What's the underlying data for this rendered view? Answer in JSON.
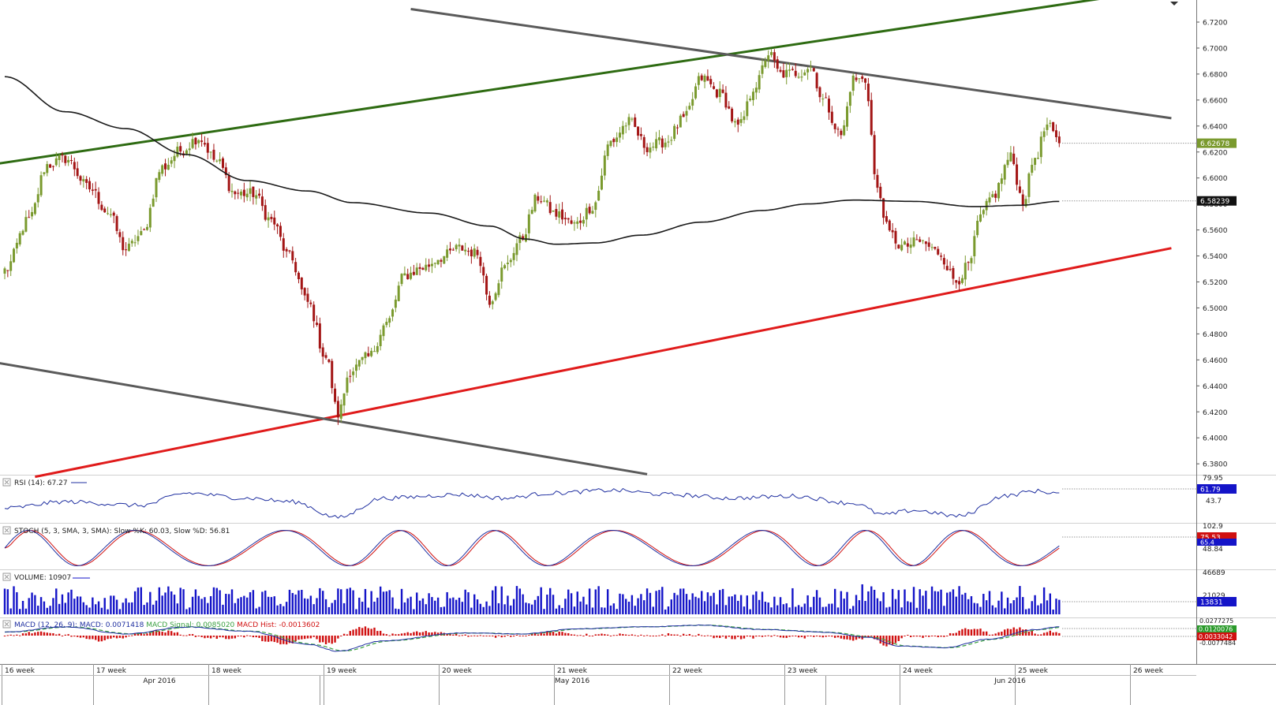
{
  "colors": {
    "bull": "#7a9a2e",
    "bear": "#a31515",
    "ma": "#1a1a1a",
    "channel_upper": "#2e6b12",
    "support": "#e01b1b",
    "channel_grey": "#5a5a5a",
    "rsi": "#1f2fa0",
    "stoch_k": "#1f2fa0",
    "stoch_d": "#d01010",
    "volume": "#1414c8",
    "macd": "#1f2fa0",
    "macd_signal": "#3aa040",
    "macd_hist": "#d01010",
    "grid": "#c8c8c8",
    "price_tag": "#7a9a2e",
    "ma_tag": "#111111",
    "rsi_tag": "#1414c8",
    "stoch_tag": "#d01010",
    "volume_tag": "#1414c8"
  },
  "chart_data": {
    "type": "candlestick",
    "instrument_style": "OHLC candles with indicators",
    "price_axis": {
      "ylim": [
        6.37,
        6.73
      ],
      "ticks": [
        "6.7200",
        "6.7000",
        "6.6800",
        "6.6600",
        "6.6400",
        "6.6200",
        "6.6000",
        "6.5800",
        "6.5600",
        "6.5400",
        "6.5200",
        "6.5000",
        "6.4800",
        "6.4600",
        "6.4400",
        "6.4200",
        "6.4000",
        "6.3800"
      ],
      "last_price": 6.62678,
      "last_price_label": "6.62678",
      "ma_value": 6.58239,
      "ma_value_label": "6.58239"
    },
    "x_axis": {
      "week_labels": [
        "16 week",
        "17 week",
        "18 week",
        "19 week",
        "20 week",
        "21 week",
        "22 week",
        "23 week",
        "24 week",
        "25 week",
        "26 week"
      ],
      "month_labels": [
        "Apr 2016",
        "May 2016",
        "Jun 2016"
      ]
    },
    "price_keypoints": [
      [
        0,
        6.529
      ],
      [
        8,
        6.568
      ],
      [
        14,
        6.61
      ],
      [
        20,
        6.615
      ],
      [
        28,
        6.592
      ],
      [
        34,
        6.574
      ],
      [
        40,
        6.545
      ],
      [
        45,
        6.556
      ],
      [
        52,
        6.608
      ],
      [
        58,
        6.621
      ],
      [
        64,
        6.631
      ],
      [
        70,
        6.613
      ],
      [
        76,
        6.588
      ],
      [
        82,
        6.588
      ],
      [
        88,
        6.567
      ],
      [
        94,
        6.539
      ],
      [
        100,
        6.504
      ],
      [
        106,
        6.462
      ],
      [
        110,
        6.418
      ],
      [
        114,
        6.452
      ],
      [
        120,
        6.462
      ],
      [
        126,
        6.488
      ],
      [
        132,
        6.525
      ],
      [
        138,
        6.531
      ],
      [
        144,
        6.539
      ],
      [
        150,
        6.546
      ],
      [
        156,
        6.542
      ],
      [
        160,
        6.506
      ],
      [
        165,
        6.531
      ],
      [
        170,
        6.552
      ],
      [
        176,
        6.585
      ],
      [
        182,
        6.572
      ],
      [
        188,
        6.564
      ],
      [
        194,
        6.578
      ],
      [
        200,
        6.628
      ],
      [
        206,
        6.643
      ],
      [
        212,
        6.624
      ],
      [
        218,
        6.628
      ],
      [
        224,
        6.645
      ],
      [
        230,
        6.677
      ],
      [
        236,
        6.665
      ],
      [
        242,
        6.639
      ],
      [
        248,
        6.672
      ],
      [
        252,
        6.696
      ],
      [
        256,
        6.68
      ],
      [
        262,
        6.681
      ],
      [
        266,
        6.686
      ],
      [
        270,
        6.66
      ],
      [
        276,
        6.633
      ],
      [
        280,
        6.676
      ],
      [
        284,
        6.675
      ],
      [
        288,
        6.59
      ],
      [
        292,
        6.557
      ],
      [
        296,
        6.547
      ],
      [
        302,
        6.551
      ],
      [
        308,
        6.543
      ],
      [
        314,
        6.521
      ],
      [
        318,
        6.532
      ],
      [
        322,
        6.57
      ],
      [
        326,
        6.586
      ],
      [
        332,
        6.616
      ],
      [
        336,
        6.582
      ],
      [
        340,
        6.616
      ],
      [
        344,
        6.64
      ],
      [
        348,
        6.627
      ]
    ],
    "ma_keypoints": [
      [
        0,
        6.678
      ],
      [
        20,
        6.651
      ],
      [
        40,
        6.638
      ],
      [
        60,
        6.618
      ],
      [
        80,
        6.598
      ],
      [
        100,
        6.59
      ],
      [
        115,
        6.581
      ],
      [
        140,
        6.573
      ],
      [
        160,
        6.563
      ],
      [
        172,
        6.553
      ],
      [
        182,
        6.549
      ],
      [
        195,
        6.55
      ],
      [
        210,
        6.556
      ],
      [
        230,
        6.566
      ],
      [
        250,
        6.575
      ],
      [
        265,
        6.58
      ],
      [
        280,
        6.583
      ],
      [
        300,
        6.582
      ],
      [
        320,
        6.578
      ],
      [
        335,
        6.579
      ],
      [
        348,
        6.582
      ]
    ],
    "volume_axis": {
      "ticks": [
        "46689",
        "21029"
      ],
      "last_label": "13831"
    },
    "rsi": {
      "label": "RSI (14): 67.27",
      "ticks": [
        "79.95",
        "43.7"
      ],
      "last_label": "61.79",
      "keypoints": [
        [
          0,
          41
        ],
        [
          20,
          50
        ],
        [
          45,
          45
        ],
        [
          60,
          62
        ],
        [
          80,
          55
        ],
        [
          95,
          50
        ],
        [
          110,
          28
        ],
        [
          125,
          55
        ],
        [
          150,
          60
        ],
        [
          165,
          55
        ],
        [
          180,
          62
        ],
        [
          200,
          66
        ],
        [
          220,
          60
        ],
        [
          240,
          55
        ],
        [
          260,
          58
        ],
        [
          280,
          48
        ],
        [
          290,
          32
        ],
        [
          300,
          38
        ],
        [
          315,
          30
        ],
        [
          330,
          58
        ],
        [
          340,
          65
        ],
        [
          348,
          62
        ]
      ]
    },
    "stoch": {
      "label": "STOCH (5, 3, SMA, 3, SMA): Slow %K: 60.03, Slow %D: 56.81",
      "ticks": [
        "102.9",
        "48.84"
      ],
      "last_k_label": "75.53",
      "last_d_label": "65.4"
    },
    "volume": {
      "label": "VOLUME: 10907"
    },
    "macd": {
      "label_main": "MACD (12, 26, 9): MACD: 0.0071418",
      "label_signal": "MACD Signal: 0.0085020",
      "label_hist": "MACD Hist: -0.0013602",
      "ticks": [
        "0.0277275",
        "-0.0077484"
      ],
      "last_macd_label": "0.0120076",
      "last_signal_label": "0.0033042",
      "keypoints": [
        [
          0,
          0.004
        ],
        [
          20,
          0.01
        ],
        [
          40,
          0.002
        ],
        [
          60,
          0.01
        ],
        [
          80,
          0.005
        ],
        [
          100,
          -0.01
        ],
        [
          110,
          -0.018
        ],
        [
          125,
          -0.006
        ],
        [
          150,
          0.003
        ],
        [
          170,
          0.002
        ],
        [
          190,
          0.008
        ],
        [
          210,
          0.01
        ],
        [
          230,
          0.012
        ],
        [
          250,
          0.007
        ],
        [
          270,
          0.004
        ],
        [
          285,
          -0.002
        ],
        [
          295,
          -0.012
        ],
        [
          310,
          -0.014
        ],
        [
          325,
          -0.004
        ],
        [
          340,
          0.007
        ],
        [
          348,
          0.01
        ]
      ]
    },
    "trendlines": [
      {
        "name": "upper channel (green)",
        "from": [
          -8,
          6.609
        ],
        "to": [
          385,
          6.7462
        ]
      },
      {
        "name": "support (red)",
        "from": [
          10,
          6.37
        ],
        "to": [
          385,
          6.546
        ]
      },
      {
        "name": "upper grey",
        "from": [
          134,
          6.73
        ],
        "to": [
          385,
          6.646
        ]
      },
      {
        "name": "lower grey",
        "from": [
          -8,
          6.46
        ],
        "to": [
          212,
          6.372
        ]
      }
    ]
  }
}
